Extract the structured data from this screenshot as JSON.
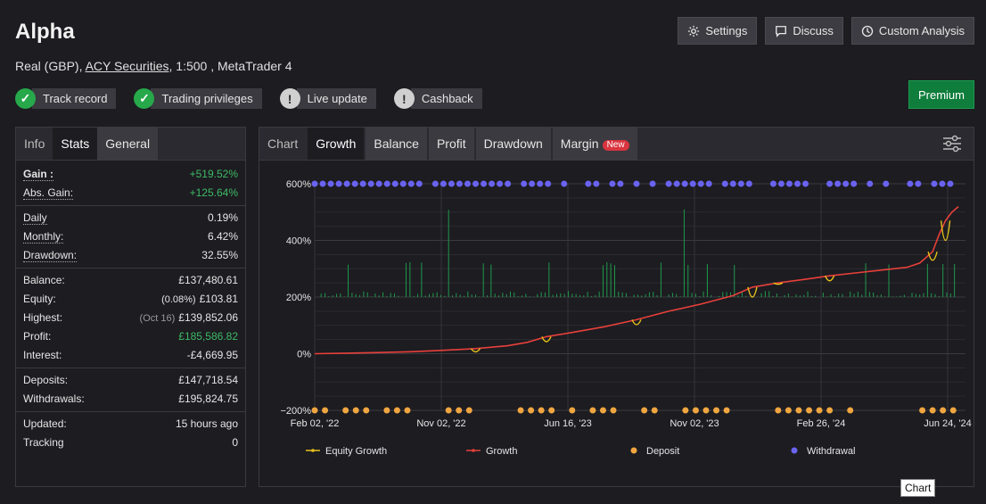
{
  "header": {
    "title": "Alpha",
    "account_type": "Real (GBP),",
    "broker": "ACY Securities",
    "leverage_platform": ", 1:500 , MetaTrader 4"
  },
  "badges": [
    {
      "label": "Track record",
      "status": "ok"
    },
    {
      "label": "Trading privileges",
      "status": "ok"
    },
    {
      "label": "Live update",
      "status": "warn"
    },
    {
      "label": "Cashback",
      "status": "warn"
    }
  ],
  "buttons": {
    "settings": "Settings",
    "discuss": "Discuss",
    "custom_analysis": "Custom Analysis",
    "premium": "Premium"
  },
  "stats_tabs": [
    "Info",
    "Stats",
    "General"
  ],
  "stats": {
    "gain": {
      "label": "Gain :",
      "value": "+519.52%"
    },
    "abs_gain": {
      "label": "Abs. Gain:",
      "value": "+125.64%"
    },
    "daily": {
      "label": "Daily",
      "value": "0.19%"
    },
    "monthly": {
      "label": "Monthly:",
      "value": "6.42%"
    },
    "drawdown": {
      "label": "Drawdown:",
      "value": "32.55%"
    },
    "balance": {
      "label": "Balance:",
      "value": "£137,480.61"
    },
    "equity": {
      "label": "Equity:",
      "pct": "(0.08%)",
      "value": "£103.81"
    },
    "highest": {
      "label": "Highest:",
      "date": "(Oct 16)",
      "value": "£139,852.06"
    },
    "profit": {
      "label": "Profit:",
      "value": "£185,586.82"
    },
    "interest": {
      "label": "Interest:",
      "value": "-£4,669.95"
    },
    "deposits": {
      "label": "Deposits:",
      "value": "£147,718.54"
    },
    "withdrawals": {
      "label": "Withdrawals:",
      "value": "£195,824.75"
    },
    "updated": {
      "label": "Updated:",
      "value": "15 hours ago"
    },
    "tracking": {
      "label": "Tracking",
      "value": "0"
    }
  },
  "chart_tabs": [
    "Chart",
    "Growth",
    "Balance",
    "Profit",
    "Drawdown",
    "Margin"
  ],
  "chart_new_badge": "New",
  "tooltip": "Chart",
  "colors": {
    "growth": "#e8403a",
    "equity_growth": "#e8c21a",
    "deposit": "#f0a640",
    "withdrawal": "#6a63f0",
    "bars": "#1f9a4a",
    "accent_green": "#3fbb64"
  },
  "chart_data": {
    "type": "line",
    "y_ticks": [
      "600%",
      "400%",
      "200%",
      "0%",
      "−200%"
    ],
    "ylim": [
      -200,
      600
    ],
    "x_ticks": [
      "Feb 02, '22",
      "Nov 02, '22",
      "Jun 16, '23",
      "Nov 02, '23",
      "Feb 26, '24",
      "Jun 24, '24"
    ],
    "legend": [
      "Equity Growth",
      "Growth",
      "Deposit",
      "Withdrawal"
    ],
    "growth": [
      [
        0,
        0
      ],
      [
        5,
        2
      ],
      [
        10,
        4
      ],
      [
        15,
        7
      ],
      [
        20,
        12
      ],
      [
        25,
        18
      ],
      [
        30,
        28
      ],
      [
        33,
        40
      ],
      [
        36,
        60
      ],
      [
        40,
        75
      ],
      [
        45,
        95
      ],
      [
        50,
        120
      ],
      [
        55,
        150
      ],
      [
        60,
        175
      ],
      [
        65,
        205
      ],
      [
        68,
        235
      ],
      [
        72,
        250
      ],
      [
        76,
        262
      ],
      [
        80,
        275
      ],
      [
        84,
        285
      ],
      [
        88,
        295
      ],
      [
        92,
        305
      ],
      [
        94,
        320
      ],
      [
        96,
        360
      ],
      [
        97,
        420
      ],
      [
        98,
        470
      ],
      [
        99,
        500
      ],
      [
        100,
        519.52
      ]
    ],
    "equity_dips": [
      [
        25,
        18,
        -5
      ],
      [
        36,
        60,
        25
      ],
      [
        50,
        120,
        85
      ],
      [
        68,
        235,
        165
      ],
      [
        72,
        250,
        240
      ],
      [
        80,
        275,
        240
      ],
      [
        96,
        360,
        300
      ],
      [
        98,
        470,
        330
      ]
    ]
  }
}
